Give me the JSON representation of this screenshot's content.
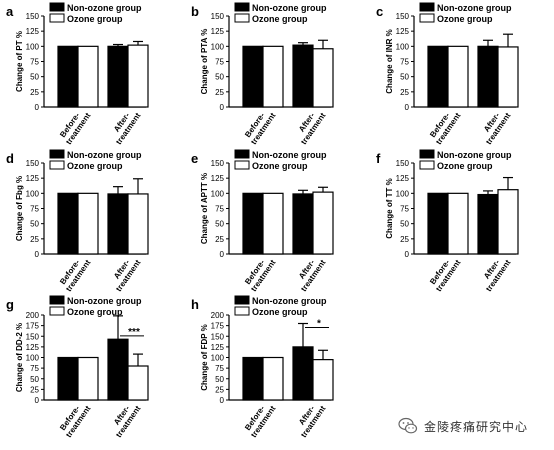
{
  "watermark": {
    "text": "金陵疼痛研究中心",
    "icon": "wechat-icon"
  },
  "chart_data": [
    {
      "type": "bar",
      "panel": "a",
      "ylabel": "Change of PT %",
      "categories": [
        "Before-treatment",
        "After-treatment"
      ],
      "series": [
        {
          "name": "Non-ozone group",
          "values": [
            100,
            100
          ],
          "errors": [
            0,
            3
          ],
          "color": "#000000"
        },
        {
          "name": "Ozone group",
          "values": [
            100,
            102
          ],
          "errors": [
            0,
            6
          ],
          "color": "#ffffff"
        }
      ],
      "ylim": [
        0,
        150
      ],
      "yticks": [
        0,
        25,
        50,
        75,
        100,
        125,
        150
      ],
      "legend": "top-left",
      "grid": false,
      "significance": []
    },
    {
      "type": "bar",
      "panel": "b",
      "ylabel": "Change of PTA %",
      "categories": [
        "Before-treatment",
        "After-treatment"
      ],
      "series": [
        {
          "name": "Non-ozone group",
          "values": [
            100,
            102
          ],
          "errors": [
            0,
            4
          ],
          "color": "#000000"
        },
        {
          "name": "Ozone group",
          "values": [
            100,
            96
          ],
          "errors": [
            0,
            14
          ],
          "color": "#ffffff"
        }
      ],
      "ylim": [
        0,
        150
      ],
      "yticks": [
        0,
        25,
        50,
        75,
        100,
        125,
        150
      ],
      "legend": "top-left",
      "grid": false,
      "significance": []
    },
    {
      "type": "bar",
      "panel": "c",
      "ylabel": "Change of INR %",
      "categories": [
        "Before-treatment",
        "After-treatment"
      ],
      "series": [
        {
          "name": "Non-ozone group",
          "values": [
            100,
            100
          ],
          "errors": [
            0,
            10
          ],
          "color": "#000000"
        },
        {
          "name": "Ozone group",
          "values": [
            100,
            99
          ],
          "errors": [
            0,
            21
          ],
          "color": "#ffffff"
        }
      ],
      "ylim": [
        0,
        150
      ],
      "yticks": [
        0,
        25,
        50,
        75,
        100,
        125,
        150
      ],
      "legend": "top-left",
      "grid": false,
      "significance": []
    },
    {
      "type": "bar",
      "panel": "d",
      "ylabel": "Change of Fbg %",
      "categories": [
        "Before-treatment",
        "After-treatment"
      ],
      "series": [
        {
          "name": "Non-ozone group",
          "values": [
            100,
            99
          ],
          "errors": [
            0,
            12
          ],
          "color": "#000000"
        },
        {
          "name": "Ozone group",
          "values": [
            100,
            99
          ],
          "errors": [
            0,
            25
          ],
          "color": "#ffffff"
        }
      ],
      "ylim": [
        0,
        150
      ],
      "yticks": [
        0,
        25,
        50,
        75,
        100,
        125,
        150
      ],
      "legend": "top-left",
      "grid": false,
      "significance": []
    },
    {
      "type": "bar",
      "panel": "e",
      "ylabel": "Change of APTT %",
      "categories": [
        "Before-treatment",
        "After-treatment"
      ],
      "series": [
        {
          "name": "Non-ozone group",
          "values": [
            100,
            99
          ],
          "errors": [
            0,
            6
          ],
          "color": "#000000"
        },
        {
          "name": "Ozone group",
          "values": [
            100,
            102
          ],
          "errors": [
            0,
            8
          ],
          "color": "#ffffff"
        }
      ],
      "ylim": [
        0,
        150
      ],
      "yticks": [
        0,
        25,
        50,
        75,
        100,
        125,
        150
      ],
      "legend": "top-left",
      "grid": false,
      "significance": []
    },
    {
      "type": "bar",
      "panel": "f",
      "ylabel": "Change of TT %",
      "categories": [
        "Before-treatment",
        "After-treatment"
      ],
      "series": [
        {
          "name": "Non-ozone group",
          "values": [
            100,
            98
          ],
          "errors": [
            0,
            6
          ],
          "color": "#000000"
        },
        {
          "name": "Ozone group",
          "values": [
            100,
            106
          ],
          "errors": [
            0,
            20
          ],
          "color": "#ffffff"
        }
      ],
      "ylim": [
        0,
        150
      ],
      "yticks": [
        0,
        25,
        50,
        75,
        100,
        125,
        150
      ],
      "legend": "top-left",
      "grid": false,
      "significance": []
    },
    {
      "type": "bar",
      "panel": "g",
      "ylabel": "Change of DD-2 %",
      "categories": [
        "Before-treatment",
        "After-treatment"
      ],
      "series": [
        {
          "name": "Non-ozone group",
          "values": [
            100,
            143
          ],
          "errors": [
            0,
            55
          ],
          "color": "#000000"
        },
        {
          "name": "Ozone group",
          "values": [
            100,
            80
          ],
          "errors": [
            0,
            28
          ],
          "color": "#ffffff"
        }
      ],
      "ylim": [
        0,
        200
      ],
      "yticks": [
        0,
        25,
        50,
        75,
        100,
        125,
        150,
        175,
        200
      ],
      "legend": "top-left",
      "grid": false,
      "significance": [
        {
          "category": 1,
          "label": "***"
        }
      ]
    },
    {
      "type": "bar",
      "panel": "h",
      "ylabel": "Change of FDP %",
      "categories": [
        "Before-treatment",
        "After-treatment"
      ],
      "series": [
        {
          "name": "Non-ozone group",
          "values": [
            100,
            125
          ],
          "errors": [
            0,
            55
          ],
          "color": "#000000"
        },
        {
          "name": "Ozone group",
          "values": [
            100,
            95
          ],
          "errors": [
            0,
            22
          ],
          "color": "#ffffff"
        }
      ],
      "ylim": [
        0,
        200
      ],
      "yticks": [
        0,
        25,
        50,
        75,
        100,
        125,
        150,
        175,
        200
      ],
      "legend": "top-left",
      "grid": false,
      "significance": [
        {
          "category": 1,
          "label": "*"
        }
      ]
    }
  ]
}
